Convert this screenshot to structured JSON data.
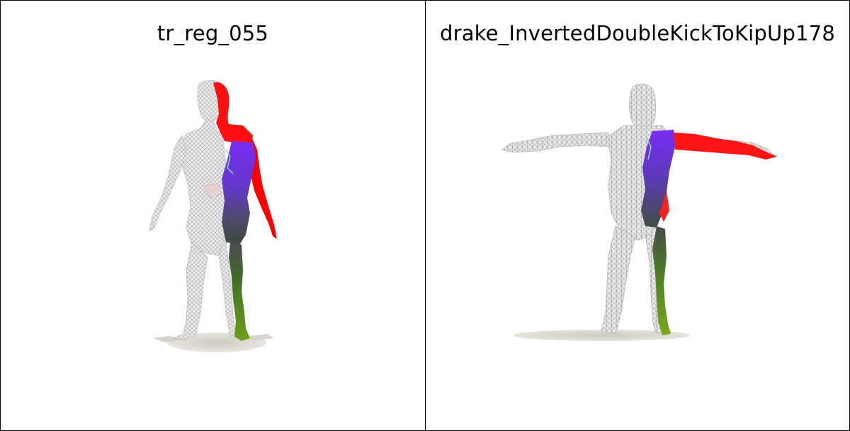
{
  "figure": {
    "panels": [
      {
        "title": "tr_reg_055",
        "figure_icon": "standing-human-mesh-icon",
        "colors": {
          "mesh": "#e4e4e4",
          "mesh_lines": "#9a9a9a",
          "head_arm": "#ff0000",
          "torso": "#6a2cf0",
          "leg": "#5aa020",
          "shadow": "#d8d4cc"
        }
      },
      {
        "title": "drake_InvertedDoubleKickToKipUp178",
        "figure_icon": "t-pose-creature-mesh-icon",
        "colors": {
          "mesh": "#e4e4e4",
          "mesh_lines": "#9a9a9a",
          "arm": "#ff0000",
          "torso": "#6a2cf0",
          "leg": "#5aa020",
          "shadow": "#d8d4cc"
        }
      }
    ]
  }
}
